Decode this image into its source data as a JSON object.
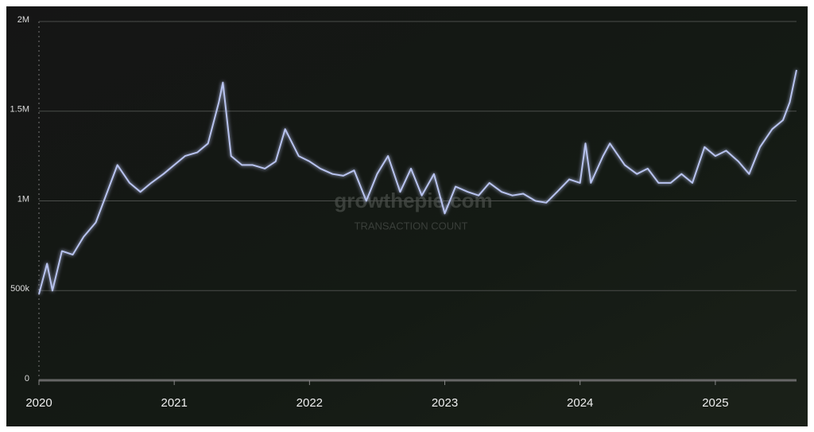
{
  "chart_data": {
    "type": "line",
    "watermark": "growthepie.com",
    "watermark_label": "TRANSACTION COUNT",
    "x": [
      2020.0,
      2020.06,
      2020.1,
      2020.17,
      2020.25,
      2020.33,
      2020.42,
      2020.5,
      2020.58,
      2020.67,
      2020.75,
      2020.83,
      2020.92,
      2021.0,
      2021.08,
      2021.17,
      2021.25,
      2021.33,
      2021.36,
      2021.42,
      2021.5,
      2021.58,
      2021.67,
      2021.75,
      2021.82,
      2021.92,
      2022.0,
      2022.08,
      2022.17,
      2022.25,
      2022.33,
      2022.42,
      2022.5,
      2022.58,
      2022.67,
      2022.75,
      2022.83,
      2022.92,
      2023.0,
      2023.08,
      2023.17,
      2023.25,
      2023.33,
      2023.42,
      2023.5,
      2023.58,
      2023.67,
      2023.75,
      2023.83,
      2023.92,
      2024.0,
      2024.04,
      2024.08,
      2024.17,
      2024.22,
      2024.33,
      2024.42,
      2024.5,
      2024.58,
      2024.67,
      2024.75,
      2024.83,
      2024.92,
      2025.0,
      2025.08,
      2025.17,
      2025.25,
      2025.33,
      2025.42,
      2025.5,
      2025.55,
      2025.6
    ],
    "series": [
      {
        "color": "#b8c3ef",
        "values": [
          480000,
          650000,
          500000,
          720000,
          700000,
          800000,
          880000,
          1040000,
          1200000,
          1100000,
          1050000,
          1100000,
          1150000,
          1200000,
          1250000,
          1270000,
          1320000,
          1550000,
          1660000,
          1250000,
          1200000,
          1200000,
          1180000,
          1220000,
          1400000,
          1250000,
          1220000,
          1180000,
          1150000,
          1140000,
          1170000,
          1000000,
          1150000,
          1250000,
          1050000,
          1180000,
          1030000,
          1150000,
          930000,
          1080000,
          1050000,
          1030000,
          1100000,
          1050000,
          1030000,
          1040000,
          1000000,
          990000,
          1050000,
          1120000,
          1100000,
          1320000,
          1100000,
          1250000,
          1320000,
          1200000,
          1150000,
          1180000,
          1100000,
          1100000,
          1150000,
          1100000,
          1300000,
          1250000,
          1280000,
          1220000,
          1150000,
          1300000,
          1400000,
          1450000,
          1550000,
          1730000
        ]
      }
    ],
    "xlim": [
      2020,
      2025.6
    ],
    "xticks": [
      2020,
      2021,
      2022,
      2023,
      2024,
      2025
    ],
    "ylim": [
      0,
      2000000
    ],
    "yticks": [
      {
        "value": 0,
        "label": "0"
      },
      {
        "value": 500000,
        "label": "500k"
      },
      {
        "value": 1000000,
        "label": "1M"
      },
      {
        "value": 1500000,
        "label": "1.5M"
      },
      {
        "value": 2000000,
        "label": "2M"
      }
    ],
    "grid": true
  }
}
